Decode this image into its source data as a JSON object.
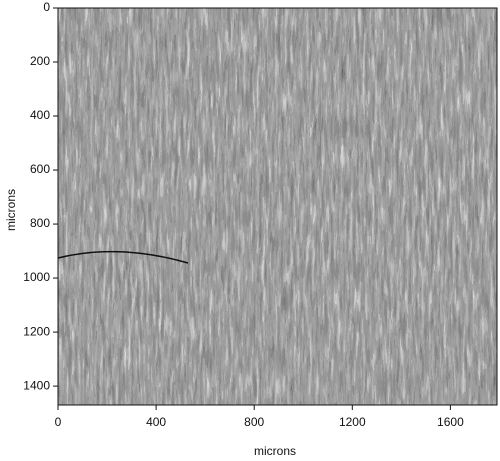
{
  "chart_data": {
    "type": "image",
    "xlabel": "microns",
    "ylabel": "microns",
    "xlim": [
      0,
      1790
    ],
    "ylim": [
      1470,
      0
    ],
    "xticks": [
      0,
      400,
      800,
      1200,
      1600
    ],
    "yticks": [
      0,
      200,
      400,
      600,
      800,
      1000,
      1200,
      1400
    ]
  }
}
